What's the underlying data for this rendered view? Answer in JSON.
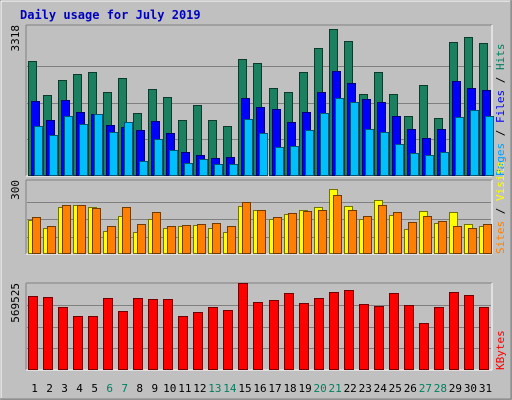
{
  "chart_data": {
    "type": "bar",
    "title": "Daily usage for July 2019",
    "categories": [
      "1",
      "2",
      "3",
      "4",
      "5",
      "6",
      "7",
      "8",
      "9",
      "10",
      "11",
      "12",
      "13",
      "14",
      "15",
      "16",
      "17",
      "18",
      "19",
      "20",
      "21",
      "22",
      "23",
      "24",
      "25",
      "26",
      "27",
      "28",
      "29",
      "30",
      "31"
    ],
    "weekend_days": [
      "6",
      "7",
      "13",
      "14",
      "20",
      "21",
      "27",
      "28"
    ],
    "panels": [
      {
        "id": "hits",
        "axis_label": "3318",
        "axis_max": 3318,
        "grid": true,
        "legend": [
          {
            "text": "Pages",
            "color": "#00a0ff"
          },
          {
            "text": " / ",
            "color": "#000000"
          },
          {
            "text": "Files",
            "color": "#0000ff"
          },
          {
            "text": " / ",
            "color": "#000000"
          },
          {
            "text": "Hits",
            "color": "#007f5f"
          }
        ],
        "series": [
          {
            "name": "Hits",
            "color": "#1a8060",
            "values": [
              2602,
              1825,
              2165,
              2304,
              2350,
              1903,
              2211,
              1421,
              1969,
              1776,
              1264,
              1593,
              1264,
              1128,
              2643,
              2561,
              1995,
              1907,
              2349,
              2900,
              3318,
              3052,
              1857,
              2348,
              1849,
              1357,
              2046,
              1309,
              3016,
              3135,
              3010
            ]
          },
          {
            "name": "Files",
            "color": "#0000ff",
            "values": [
              1694,
              1261,
              1711,
              1453,
              1406,
              1151,
              1097,
              1034,
              1244,
              971,
              538,
              478,
              413,
              418,
              1762,
              1558,
              1519,
              1210,
              1446,
              1900,
              2377,
              2102,
              1732,
              1660,
              1362,
              1050,
              853,
              1059,
              2134,
              1992,
              1930
            ]
          },
          {
            "name": "Pages",
            "color": "#00bfff",
            "values": [
              1134,
              918,
              1360,
              1166,
              1399,
              984,
              1230,
              343,
              845,
              578,
              289,
              382,
              261,
              265,
              1289,
              966,
              664,
              674,
              1048,
              1424,
              1760,
              1680,
              1061,
              993,
              713,
              518,
              463,
              551,
              1321,
              1497,
              1359
            ]
          }
        ]
      },
      {
        "id": "visits",
        "axis_label": "300",
        "axis_max": 300,
        "grid": true,
        "legend": [
          {
            "text": "Sites",
            "color": "#ff8000"
          },
          {
            "text": " / ",
            "color": "#000000"
          },
          {
            "text": "Visits",
            "color": "#ffff00"
          }
        ],
        "series": [
          {
            "name": "Visits",
            "color": "#ffff00",
            "values": [
              146,
              112,
              202,
              210,
              202,
              98,
              164,
              96,
              151,
              113,
              122,
              123,
              113,
              96,
              205,
              188,
              149,
              172,
              188,
              200,
              280,
              207,
              152,
              230,
              167,
              105,
              186,
              134,
              178,
              127,
              120
            ]
          },
          {
            "name": "Sites",
            "color": "#ff8000",
            "values": [
              157,
              119,
              210,
              210,
              195,
              118,
              201,
              127,
              179,
              120,
              126,
              127,
              131,
              121,
              221,
              190,
              158,
              176,
              185,
              187,
              254,
              190,
              164,
              212,
              181,
              136,
              161,
              143,
              122,
              113,
              129
            ]
          }
        ]
      },
      {
        "id": "kbytes",
        "axis_label": "569525",
        "axis_max": 569525,
        "grid": true,
        "legend": [
          {
            "text": "KBytes",
            "color": "#ff0000"
          }
        ],
        "series": [
          {
            "name": "KBytes",
            "color": "#ff0000",
            "values": [
              487466,
              481013,
              409974,
              351869,
              351869,
              474558,
              383939,
              474558,
              467879,
              467879,
              351869,
              377311,
              409974,
              390556,
              569525,
              442204,
              461395,
              506659,
              435671,
              474558,
              513095,
              525987,
              429167,
              416421,
              506659,
              422846,
              306685,
              409974,
              513095,
              493917,
              410000
            ]
          }
        ]
      }
    ]
  }
}
